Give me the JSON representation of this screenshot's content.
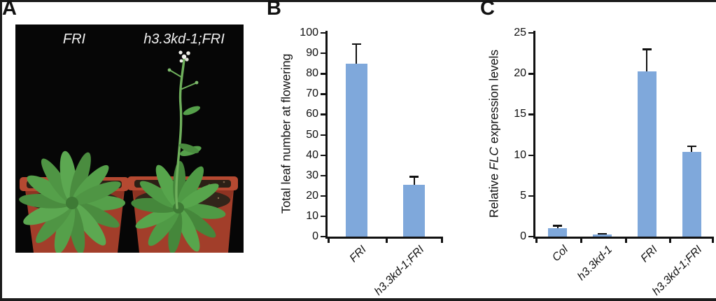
{
  "panels": {
    "a": {
      "label": "A",
      "photo_labels": [
        "FRI",
        "h3.3kd-1;FRI"
      ]
    },
    "b": {
      "label": "B"
    },
    "c": {
      "label": "C"
    }
  },
  "colors": {
    "bar_fill": "#7FA8DB",
    "axis": "#111111",
    "photo_background": "#060606",
    "pot": "#AF4530",
    "leaf": "#55A04A"
  },
  "chart_data": [
    {
      "id": "B",
      "type": "bar",
      "title": "",
      "categories": [
        "FRI",
        "h3.3kd-1;FRI"
      ],
      "values": [
        85,
        25.5
      ],
      "errors_plus": [
        9.5,
        4
      ],
      "ylabel": "Total leaf number at flowering",
      "xlabel": "",
      "ylim": [
        0,
        100
      ],
      "yticks": [
        0,
        10,
        20,
        30,
        40,
        50,
        60,
        70,
        80,
        90,
        100
      ],
      "grid": false,
      "legend": false
    },
    {
      "id": "C",
      "type": "bar",
      "title": "",
      "categories": [
        "Col",
        "h3.3kd-1",
        "FRI",
        "h3.3kd-1;FRI"
      ],
      "values": [
        1.0,
        0.25,
        20.3,
        10.4
      ],
      "errors_plus": [
        0.35,
        0.1,
        2.7,
        0.7
      ],
      "ylabel_prefix": "Relative ",
      "ylabel_italic": "FLC",
      "ylabel_suffix": " expression levels",
      "xlabel": "",
      "ylim": [
        0,
        25
      ],
      "yticks": [
        0,
        5,
        10,
        15,
        20,
        25
      ],
      "grid": false,
      "legend": false
    }
  ]
}
